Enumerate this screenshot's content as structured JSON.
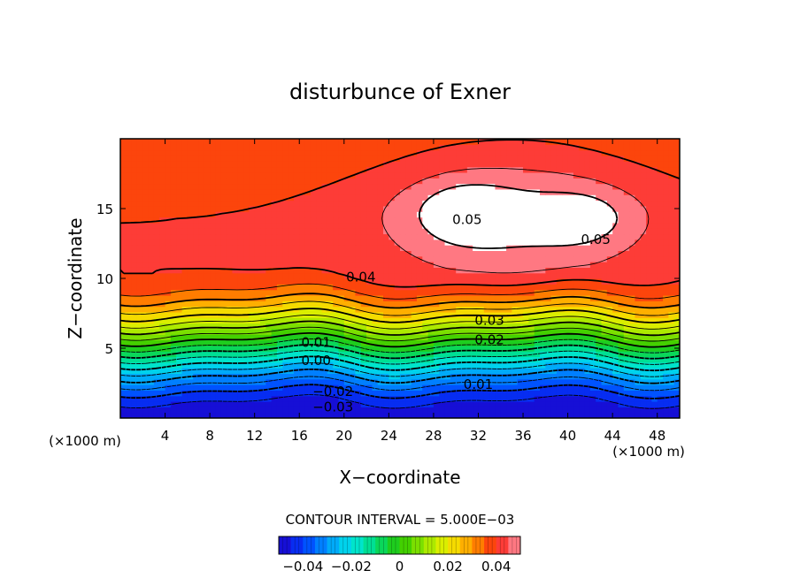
{
  "chart_data": {
    "type": "heatmap",
    "title": "disturbunce of Exner",
    "xlabel": "X−coordinate",
    "ylabel": "Z−coordinate",
    "x_unit_left": "(×1000 m)",
    "x_unit_right": "(×1000 m)",
    "xlim": [
      0,
      50
    ],
    "ylim": [
      0,
      20
    ],
    "x_ticks": [
      4,
      8,
      12,
      16,
      20,
      24,
      28,
      32,
      36,
      40,
      44,
      48
    ],
    "y_ticks": [
      5,
      10,
      15
    ],
    "contour_interval_text": "CONTOUR INTERVAL = 5.000E−03",
    "contour_interval": 0.005,
    "value_range": [
      -0.05,
      0.05
    ],
    "colorbar_ticks": [
      "−0.04",
      "−0.02",
      "0",
      "0.02",
      "0.04"
    ],
    "contour_labels": [
      {
        "text": "0.05",
        "x": 31,
        "y": 14.2
      },
      {
        "text": "0.05",
        "x": 42.5,
        "y": 12.8
      },
      {
        "text": "0.04",
        "x": 21.5,
        "y": 10.1
      },
      {
        "text": "0.03",
        "x": 33,
        "y": 7.0
      },
      {
        "text": "0.02",
        "x": 33,
        "y": 5.6
      },
      {
        "text": "0.01",
        "x": 17.5,
        "y": 5.4
      },
      {
        "text": "0.01",
        "x": 32,
        "y": 2.4
      },
      {
        "text": "0.00",
        "x": 17.5,
        "y": 4.1
      },
      {
        "text": "−0.02",
        "x": 19,
        "y": 1.9
      },
      {
        "text": "−0.03",
        "x": 19,
        "y": 0.8
      }
    ],
    "grid": false
  }
}
